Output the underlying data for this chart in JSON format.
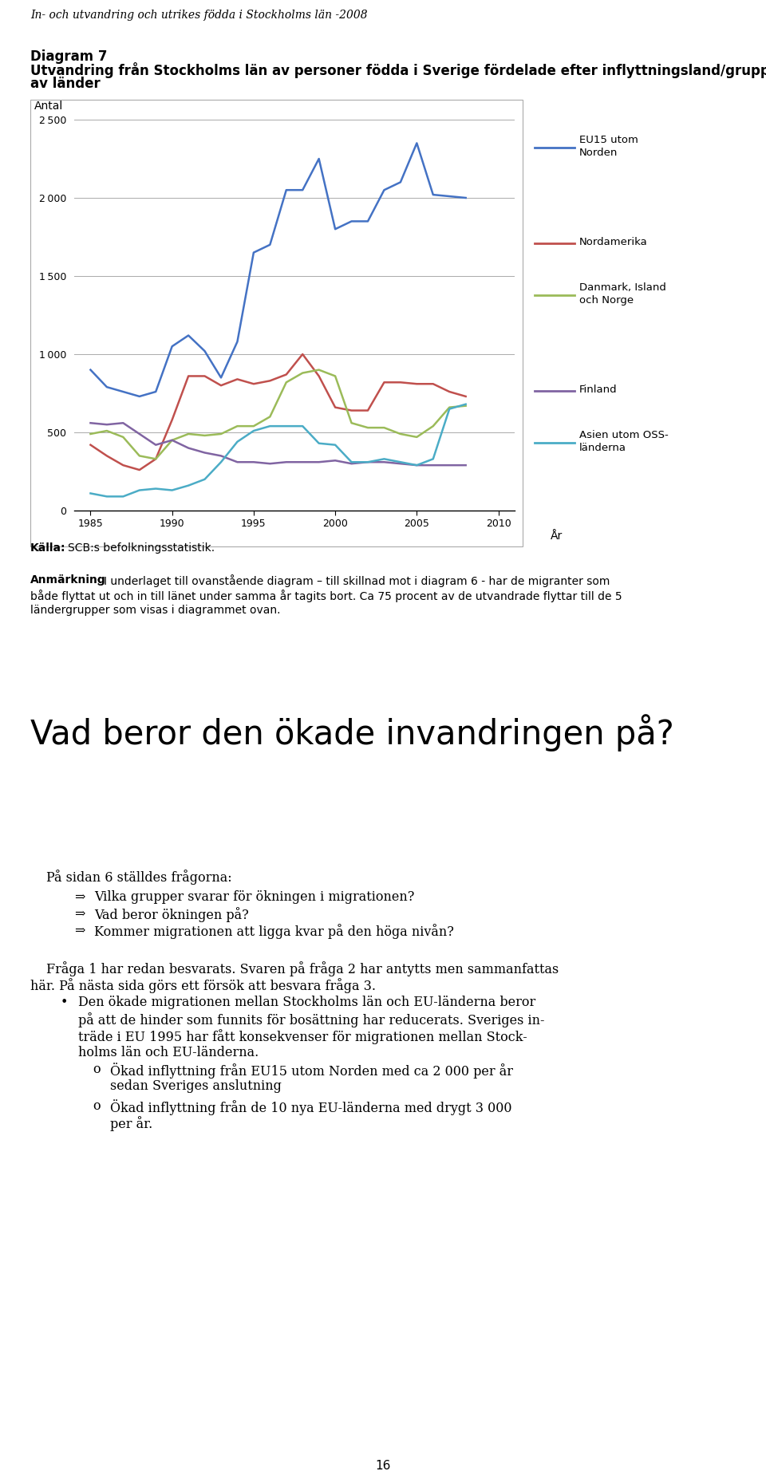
{
  "page_header": "In- och utvandring och utrikes födda i Stockholms län -2008",
  "diagram_label": "Diagram 7",
  "chart_title_line1": "Utvandring från Stockholms län av personer födda i Sverige fördelade efter inflyttningsland/grupper",
  "chart_title_line2": "av länder",
  "ylabel": "Antal",
  "xlabel_label": "År",
  "years": [
    1985,
    1986,
    1987,
    1988,
    1989,
    1990,
    1991,
    1992,
    1993,
    1994,
    1995,
    1996,
    1997,
    1998,
    1999,
    2000,
    2001,
    2002,
    2003,
    2004,
    2005,
    2006,
    2007,
    2008
  ],
  "eu15": [
    900,
    790,
    760,
    730,
    760,
    1050,
    1120,
    1020,
    850,
    1080,
    1650,
    1700,
    2050,
    2050,
    2250,
    1800,
    1850,
    1850,
    2050,
    2100,
    2350,
    2020,
    2010,
    2000
  ],
  "nordamerika": [
    420,
    350,
    290,
    260,
    330,
    580,
    860,
    860,
    800,
    840,
    810,
    830,
    870,
    1000,
    860,
    660,
    640,
    640,
    820,
    820,
    810,
    810,
    760,
    730
  ],
  "danmark": [
    490,
    510,
    470,
    350,
    330,
    450,
    490,
    480,
    490,
    540,
    540,
    600,
    820,
    880,
    900,
    860,
    560,
    530,
    530,
    490,
    470,
    540,
    660,
    670
  ],
  "finland": [
    560,
    550,
    560,
    490,
    420,
    450,
    400,
    370,
    350,
    310,
    310,
    300,
    310,
    310,
    310,
    320,
    300,
    310,
    310,
    300,
    290,
    290,
    290,
    290
  ],
  "asien": [
    110,
    90,
    90,
    130,
    140,
    130,
    160,
    200,
    310,
    440,
    510,
    540,
    540,
    540,
    430,
    420,
    310,
    310,
    330,
    310,
    290,
    330,
    650,
    680
  ],
  "eu15_color": "#4472C4",
  "nordamerika_color": "#C0504D",
  "danmark_color": "#9BBB59",
  "finland_color": "#8064A2",
  "asien_color": "#4BACC6",
  "ylim": [
    0,
    2500
  ],
  "yticks": [
    0,
    500,
    1000,
    1500,
    2000,
    2500
  ],
  "xticks": [
    1985,
    1990,
    1995,
    2000,
    2005,
    2010
  ],
  "source_bold": "Källa:",
  "source_rest": " SCB:s befolkningsstatistik.",
  "anm_bold": "Anmärkning",
  "anm_rest": ": I underlaget till ovanstående diagram – till skillnad mot i diagram 6 - har de migranter som både flyttat ut och in till länet under samma år tagits bort. Ca 75 procent av de utvandrade flyttar till de 5 ländergrupper som visas i diagrammet ovan.",
  "big_heading": "Vad beror den ökade invandringen på?",
  "body_intro": "På sidan 6 ställdes frågorna:",
  "bullets": [
    "Vilka grupper svarar för ökningen i migrationen?",
    "Vad beror ökningen på?",
    "Kommer migrationen att ligga kvar på den höga nivån?"
  ],
  "para2_line1": "Fråga 1 har redan besvarats. Svaren på fråga 2 har antytts men sammanfattas",
  "para2_line2": "här. På nästa sida görs ett försök att besvara fråga 3.",
  "bullet_main_lines": [
    "Den ökade migrationen mellan Stockholms län och EU-länderna beror",
    "på att de hinder som funnits för bosättning har reducerats. Sveriges in-",
    "träde i EU 1995 har fått konsekvenser för migrationen mellan Stock-",
    "holms län och EU-länderna."
  ],
  "sub_bullet1_lines": [
    "Ökad inflyttning från EU15 utom Norden med ca 2 000 per år",
    "sedan Sveriges anslutning"
  ],
  "sub_bullet2_lines": [
    "Ökad inflyttning från de 10 nya EU-länderna med drygt 3 000",
    "per år."
  ],
  "page_number": "16"
}
